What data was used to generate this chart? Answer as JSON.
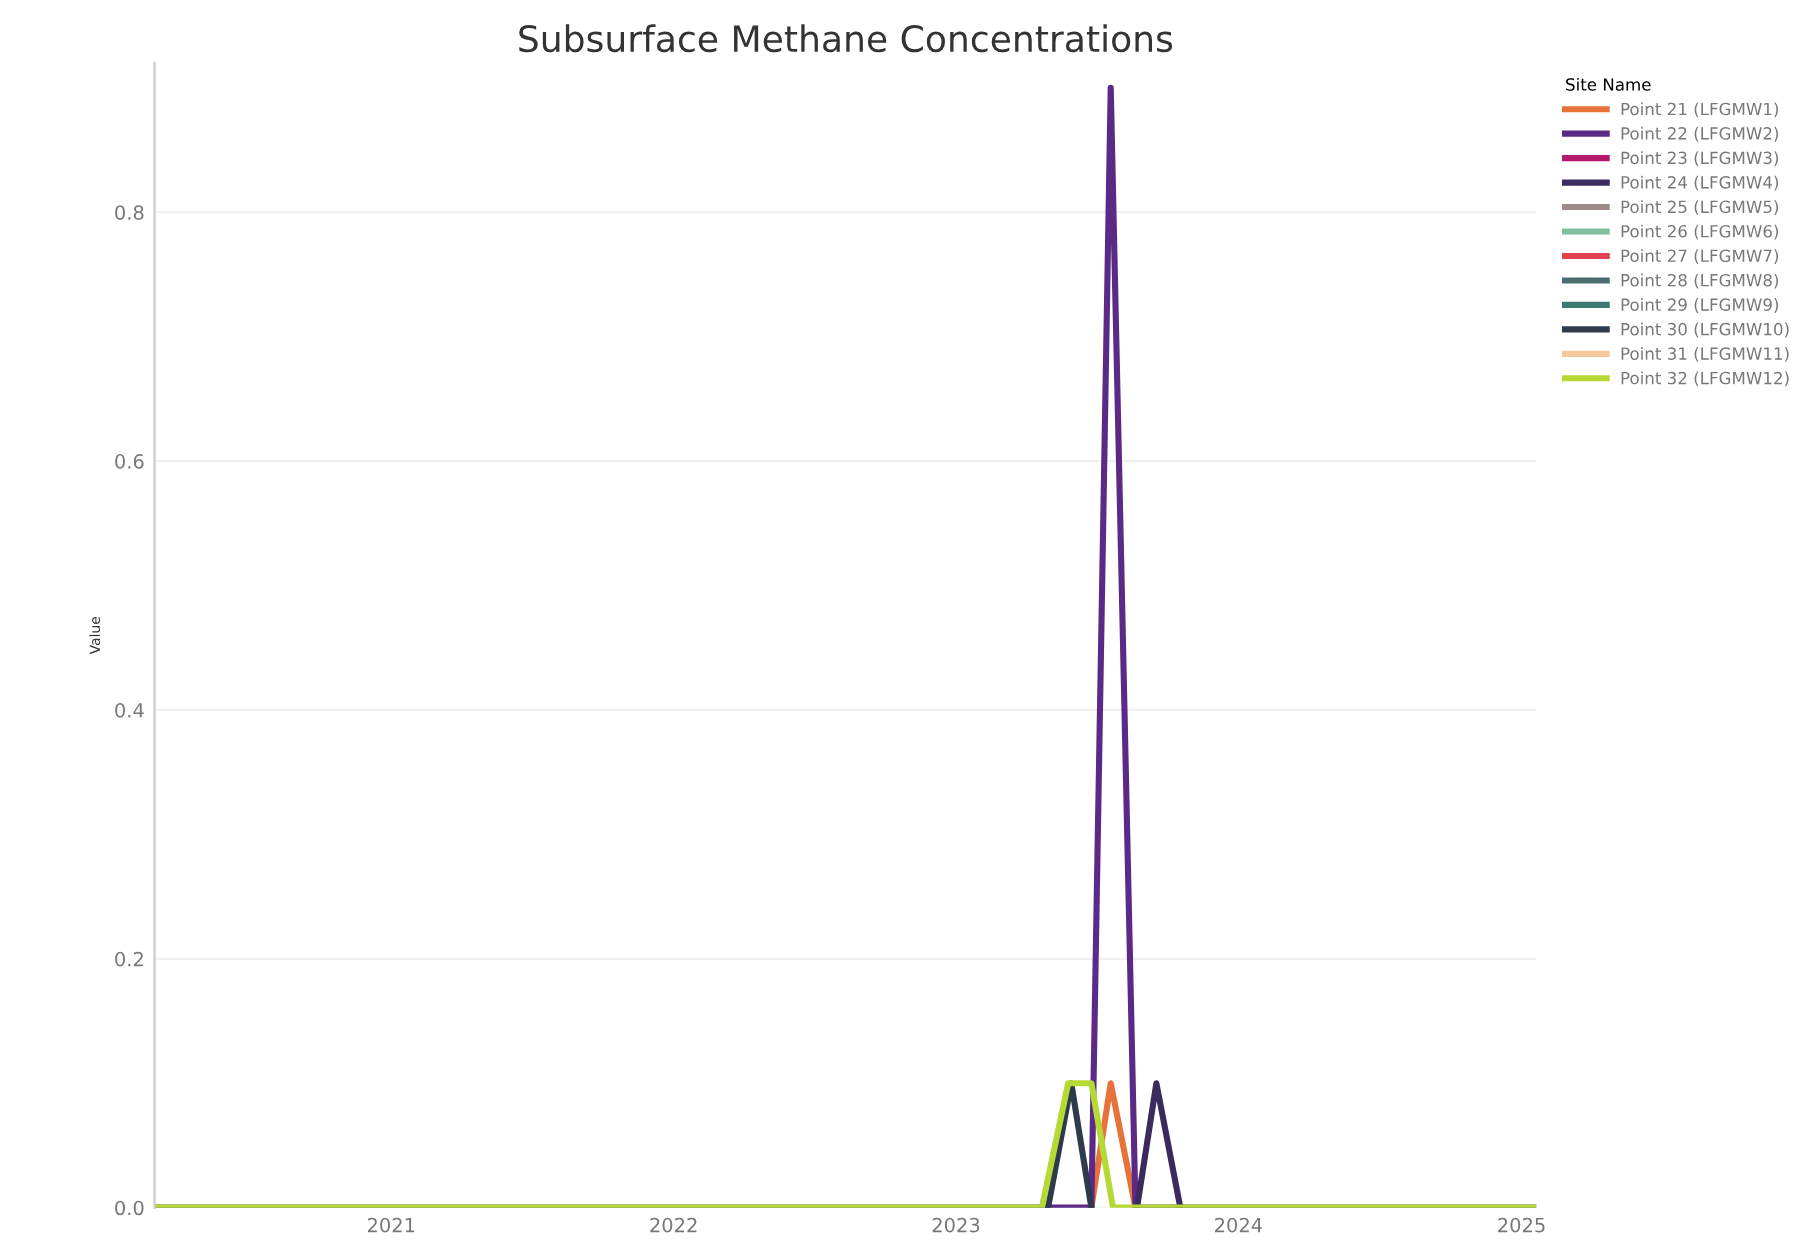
{
  "chart_data": {
    "type": "line",
    "title": "Subsurface Methane Concentrations",
    "ylabel": "Value",
    "legend_title": "Site Name",
    "xlim": [
      "2020-03-01",
      "2025-01-20"
    ],
    "xticks": [
      {
        "value": "2021-01-01",
        "label": "2021"
      },
      {
        "value": "2022-01-01",
        "label": "2022"
      },
      {
        "value": "2023-01-01",
        "label": "2023"
      },
      {
        "value": "2024-01-01",
        "label": "2024"
      },
      {
        "value": "2025-01-01",
        "label": "2025"
      }
    ],
    "ylim": [
      0,
      0.92
    ],
    "yticks": [
      {
        "value": 0,
        "label": "0.0"
      },
      0.2,
      0.4,
      0.6,
      0.8
    ],
    "grid": "y",
    "legend": "top right",
    "marker": "none",
    "line_style": "solid",
    "series": [
      {
        "name": "Point 21 (LFGMW1)",
        "color": "#e8733a",
        "x": [
          "2023-06-25",
          "2023-07-20",
          "2023-08-21"
        ],
        "values": [
          0,
          0.1,
          0
        ]
      },
      {
        "name": "Point 22 (LFGMW2)",
        "color": "#5b2a86",
        "x": [
          "2020-03-01",
          "2023-06-25",
          "2023-07-20",
          "2023-08-21",
          "2025-01-20"
        ],
        "values": [
          0,
          0,
          0.9,
          0,
          0
        ]
      },
      {
        "name": "Point 23 (LFGMW3)",
        "color": "#b5196e"
      },
      {
        "name": "Point 24 (LFGMW4)",
        "color": "#3b2a5e",
        "x": [
          "2023-08-23",
          "2023-09-17",
          "2023-10-18"
        ],
        "values": [
          0,
          0.1,
          0
        ]
      },
      {
        "name": "Point 25 (LFGMW5)",
        "color": "#a08a8a"
      },
      {
        "name": "Point 26 (LFGMW6)",
        "color": "#7fbfa0"
      },
      {
        "name": "Point 27 (LFGMW7)",
        "color": "#e04050"
      },
      {
        "name": "Point 28 (LFGMW8)",
        "color": "#4a6e6e"
      },
      {
        "name": "Point 29 (LFGMW9)",
        "color": "#3a7a70"
      },
      {
        "name": "Point 30 (LFGMW10)",
        "color": "#2e3a4e",
        "x": [
          "2023-04-30",
          "2023-05-30",
          "2023-06-25"
        ],
        "values": [
          0,
          0.1,
          0
        ]
      },
      {
        "name": "Point 31 (LFGMW11)",
        "color": "#f5c8a0"
      },
      {
        "name": "Point 32 (LFGMW12)",
        "color": "#b5d935",
        "x": [
          "2020-03-01",
          "2023-04-22",
          "2023-05-26",
          "2023-06-25",
          "2023-07-23",
          "2025-01-20"
        ],
        "values": [
          0,
          0,
          0.1,
          0.1,
          0,
          0
        ]
      }
    ]
  }
}
